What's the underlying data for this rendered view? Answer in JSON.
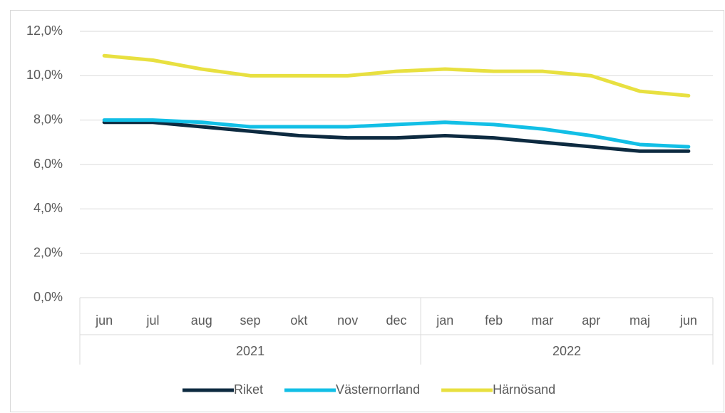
{
  "chart_data": {
    "type": "line",
    "categories": [
      "jun",
      "jul",
      "aug",
      "sep",
      "okt",
      "nov",
      "dec",
      "jan",
      "feb",
      "mar",
      "apr",
      "maj",
      "jun"
    ],
    "groups": [
      {
        "label": "2021",
        "count": 7
      },
      {
        "label": "2022",
        "count": 6
      }
    ],
    "series": [
      {
        "name": "Riket",
        "color": "#0d2a40",
        "values": [
          7.9,
          7.9,
          7.7,
          7.5,
          7.3,
          7.2,
          7.2,
          7.3,
          7.2,
          7.0,
          6.8,
          6.6,
          6.6
        ]
      },
      {
        "name": "Västernorrland",
        "color": "#12bfe6",
        "values": [
          8.0,
          8.0,
          7.9,
          7.7,
          7.7,
          7.7,
          7.8,
          7.9,
          7.8,
          7.6,
          7.3,
          6.9,
          6.8
        ]
      },
      {
        "name": "Härnösand",
        "color": "#e8e040",
        "values": [
          10.9,
          10.7,
          10.3,
          10.0,
          10.0,
          10.0,
          10.2,
          10.3,
          10.2,
          10.2,
          10.0,
          9.3,
          9.1
        ]
      }
    ],
    "ylim": [
      0,
      12
    ],
    "yticks": [
      {
        "value": 0,
        "label": "0,0%"
      },
      {
        "value": 2,
        "label": "2,0%"
      },
      {
        "value": 4,
        "label": "4,0%"
      },
      {
        "value": 6,
        "label": "6,0%"
      },
      {
        "value": 8,
        "label": "8,0%"
      },
      {
        "value": 10,
        "label": "10,0%"
      },
      {
        "value": 12,
        "label": "12,0%"
      }
    ],
    "grid": true,
    "legend": "bottom"
  }
}
